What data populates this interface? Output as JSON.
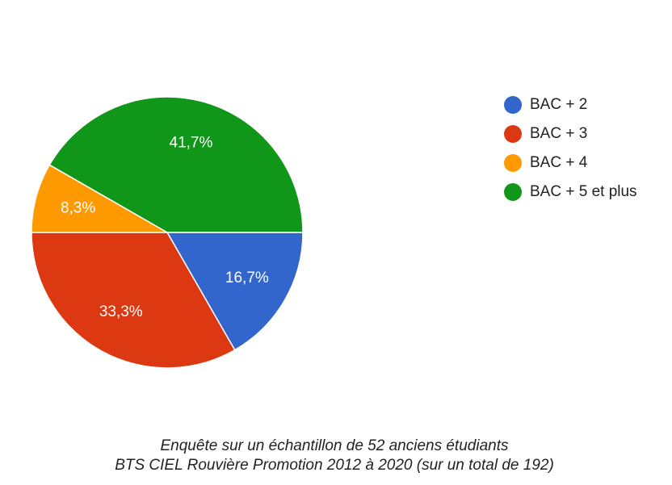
{
  "chart_data": {
    "type": "pie",
    "categories": [
      "BAC + 2",
      "BAC + 3",
      "BAC + 4",
      "BAC + 5 et plus"
    ],
    "values": [
      16.7,
      33.3,
      8.3,
      41.7
    ],
    "value_labels": [
      "16,7%",
      "33,3%",
      "8,3%",
      "41,7%"
    ],
    "colors": [
      "#3366cc",
      "#dc3912",
      "#ff9900",
      "#109618"
    ],
    "legend": "right",
    "caption": [
      "Enquête sur un échantillon de 52 anciens étudiants",
      "BTS CIEL Rouvière Promotion 2012 à 2020 (sur un total de 192)"
    ]
  }
}
